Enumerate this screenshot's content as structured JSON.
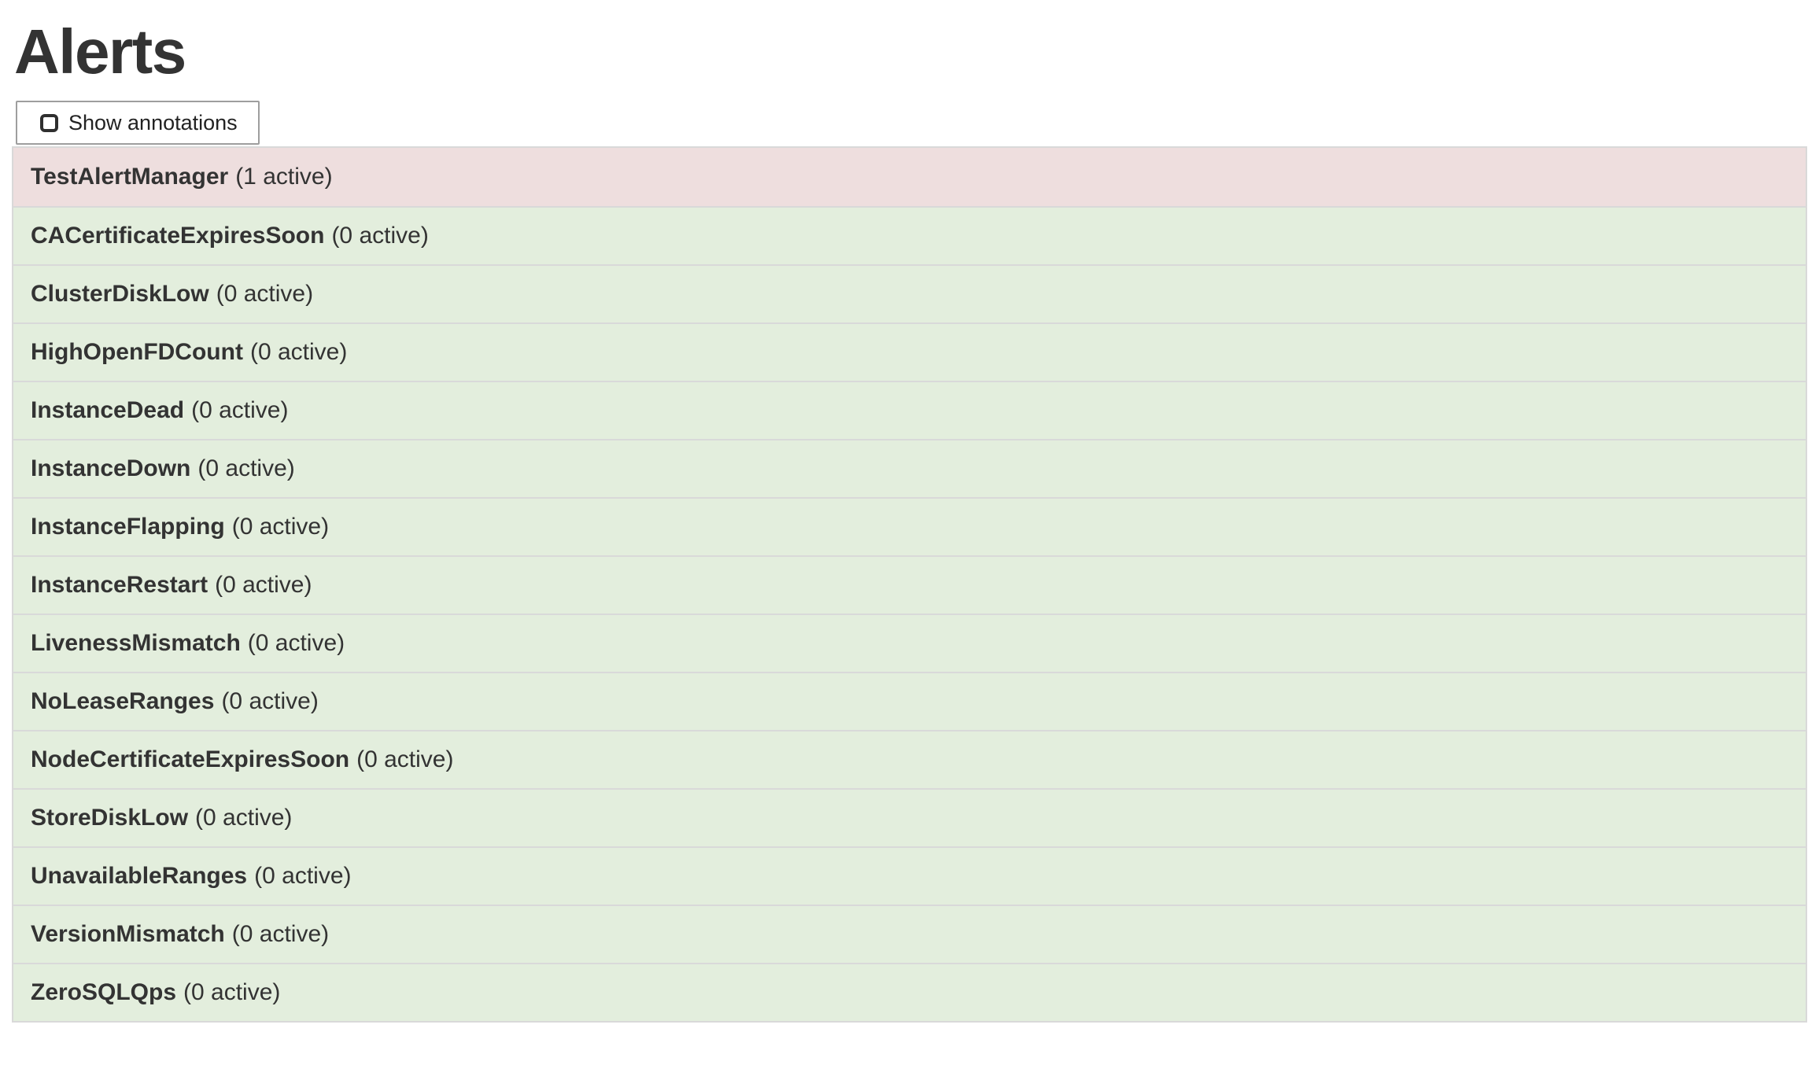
{
  "page": {
    "title": "Alerts"
  },
  "toolbar": {
    "show_annotations": {
      "label": "Show annotations",
      "checked": false
    }
  },
  "colors": {
    "firing_bg": "#eedede",
    "inactive_bg": "#e3eedd",
    "row_border": "#d9d9d9",
    "text": "#333333"
  },
  "alerts": [
    {
      "name": "TestAlertManager",
      "active": 1,
      "count_label": "(1 active)",
      "state": "firing"
    },
    {
      "name": "CACertificateExpiresSoon",
      "active": 0,
      "count_label": "(0 active)",
      "state": "inactive"
    },
    {
      "name": "ClusterDiskLow",
      "active": 0,
      "count_label": "(0 active)",
      "state": "inactive"
    },
    {
      "name": "HighOpenFDCount",
      "active": 0,
      "count_label": "(0 active)",
      "state": "inactive"
    },
    {
      "name": "InstanceDead",
      "active": 0,
      "count_label": "(0 active)",
      "state": "inactive"
    },
    {
      "name": "InstanceDown",
      "active": 0,
      "count_label": "(0 active)",
      "state": "inactive"
    },
    {
      "name": "InstanceFlapping",
      "active": 0,
      "count_label": "(0 active)",
      "state": "inactive"
    },
    {
      "name": "InstanceRestart",
      "active": 0,
      "count_label": "(0 active)",
      "state": "inactive"
    },
    {
      "name": "LivenessMismatch",
      "active": 0,
      "count_label": "(0 active)",
      "state": "inactive"
    },
    {
      "name": "NoLeaseRanges",
      "active": 0,
      "count_label": "(0 active)",
      "state": "inactive"
    },
    {
      "name": "NodeCertificateExpiresSoon",
      "active": 0,
      "count_label": "(0 active)",
      "state": "inactive"
    },
    {
      "name": "StoreDiskLow",
      "active": 0,
      "count_label": "(0 active)",
      "state": "inactive"
    },
    {
      "name": "UnavailableRanges",
      "active": 0,
      "count_label": "(0 active)",
      "state": "inactive"
    },
    {
      "name": "VersionMismatch",
      "active": 0,
      "count_label": "(0 active)",
      "state": "inactive"
    },
    {
      "name": "ZeroSQLQps",
      "active": 0,
      "count_label": "(0 active)",
      "state": "inactive"
    }
  ]
}
